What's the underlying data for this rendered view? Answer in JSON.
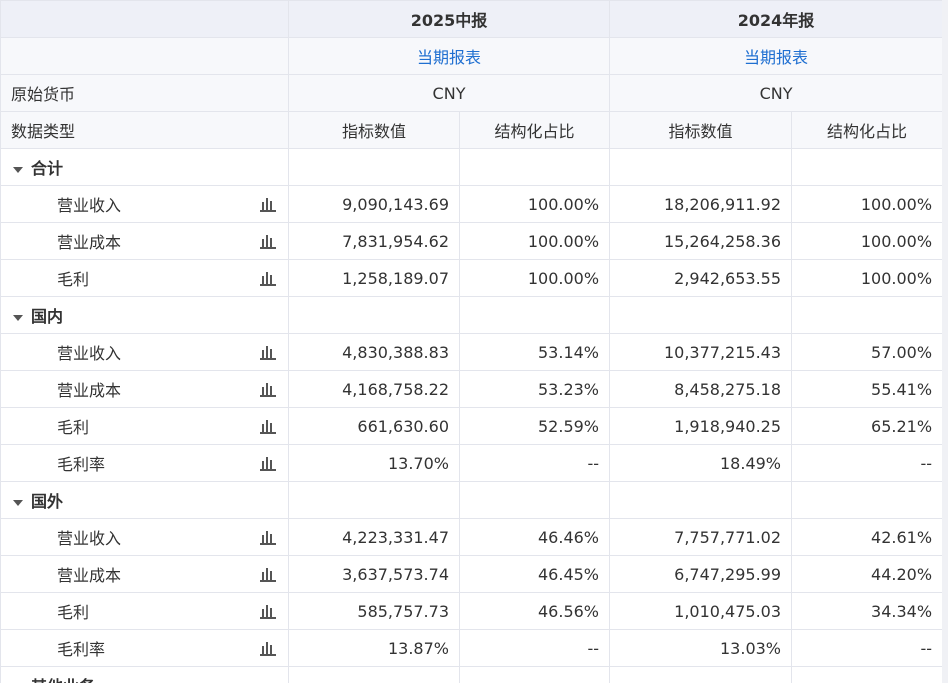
{
  "header": {
    "periods": [
      "2025中报",
      "2024年报"
    ],
    "report_links": [
      "当期报表",
      "当期报表"
    ],
    "currency_label": "原始货币",
    "currencies": [
      "CNY",
      "CNY"
    ],
    "data_type_label": "数据类型",
    "columns": [
      "指标数值",
      "结构化占比",
      "指标数值",
      "结构化占比"
    ]
  },
  "groups": [
    {
      "title": "合计",
      "rows": [
        {
          "label": "营业收入",
          "cells": [
            "9,090,143.69",
            "100.00%",
            "18,206,911.92",
            "100.00%"
          ]
        },
        {
          "label": "营业成本",
          "cells": [
            "7,831,954.62",
            "100.00%",
            "15,264,258.36",
            "100.00%"
          ]
        },
        {
          "label": "毛利",
          "cells": [
            "1,258,189.07",
            "100.00%",
            "2,942,653.55",
            "100.00%"
          ]
        }
      ]
    },
    {
      "title": "国内",
      "rows": [
        {
          "label": "营业收入",
          "cells": [
            "4,830,388.83",
            "53.14%",
            "10,377,215.43",
            "57.00%"
          ]
        },
        {
          "label": "营业成本",
          "cells": [
            "4,168,758.22",
            "53.23%",
            "8,458,275.18",
            "55.41%"
          ]
        },
        {
          "label": "毛利",
          "cells": [
            "661,630.60",
            "52.59%",
            "1,918,940.25",
            "65.21%"
          ]
        },
        {
          "label": "毛利率",
          "cells": [
            "13.70%",
            "--",
            "18.49%",
            "--"
          ]
        }
      ]
    },
    {
      "title": "国外",
      "rows": [
        {
          "label": "营业收入",
          "cells": [
            "4,223,331.47",
            "46.46%",
            "7,757,771.02",
            "42.61%"
          ]
        },
        {
          "label": "营业成本",
          "cells": [
            "3,637,573.74",
            "46.45%",
            "6,747,295.99",
            "44.20%"
          ]
        },
        {
          "label": "毛利",
          "cells": [
            "585,757.73",
            "46.56%",
            "1,010,475.03",
            "34.34%"
          ]
        },
        {
          "label": "毛利率",
          "cells": [
            "13.87%",
            "--",
            "13.03%",
            "--"
          ]
        }
      ]
    },
    {
      "title": "其他业务",
      "rows": []
    }
  ]
}
